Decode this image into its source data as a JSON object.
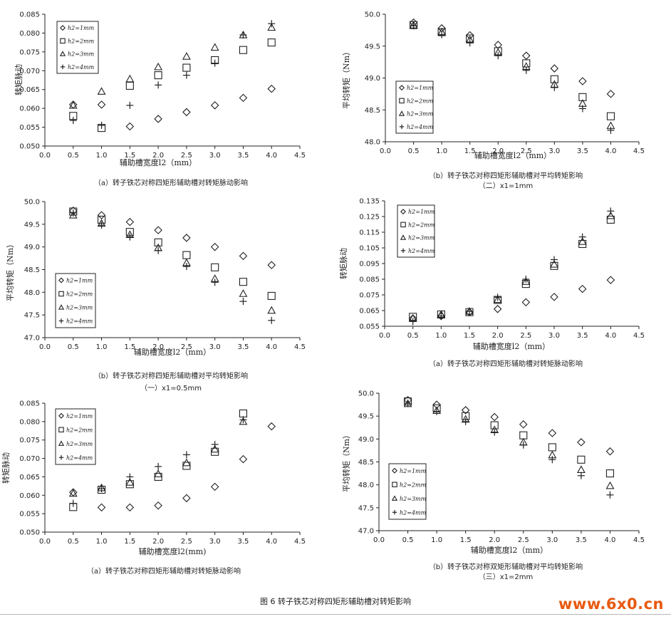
{
  "figure_caption": "图 6 转子铁芯对称四矩形辅助槽对转矩影响",
  "watermark": "www.6x0.cn",
  "captions": {
    "c1": "（a）转子铁芯对称四矩形辅助槽对转矩脉动影响",
    "c2a": "（b）转子铁芯对称四矩形辅助槽对平均转矩影响",
    "c2b": "（二）x1=1mm",
    "c3a": "（b）转子铁芯对称四矩形辅助槽对平均转矩影响",
    "c3b": "（一）x1=0.5mm",
    "c4": "（a）转子铁芯对称四矩形辅助槽对转矩脉动影响",
    "c5": "（a）转子铁芯对称四矩形辅助槽对转矩脉动影响",
    "c6a": "（b）转子铁芯对称双矩形辅助槽对平均转矩影响",
    "c6b": "（三）x1=2mm"
  },
  "chart_data": [
    {
      "type": "scatter",
      "xlabel": "辅助槽宽度l2（mm）",
      "ylabel": "转矩脉动",
      "xlim": [
        0.0,
        4.5
      ],
      "ylim": [
        0.05,
        0.085
      ],
      "xticks": [
        "0.0",
        "0.5",
        "1.0",
        "1.5",
        "2.0",
        "2.5",
        "3.0",
        "3.5",
        "4.0",
        "4.5"
      ],
      "yticks": [
        "0.050",
        "0.055",
        "0.060",
        "0.065",
        "0.070",
        "0.075",
        "0.080",
        "0.085"
      ],
      "legend_position": "top-left",
      "x": [
        0.5,
        1.0,
        1.5,
        2.0,
        2.5,
        3.0,
        3.5,
        4.0
      ],
      "series": [
        {
          "name": "h2=1mm",
          "marker": "diamond",
          "values": [
            0.061,
            0.061,
            0.0552,
            0.0572,
            0.059,
            0.0608,
            0.0628,
            0.0652
          ]
        },
        {
          "name": "h2=2mm",
          "marker": "square",
          "values": [
            0.058,
            0.0548,
            0.066,
            0.0688,
            0.0708,
            0.0728,
            0.0755,
            0.0775
          ]
        },
        {
          "name": "h2=3mm",
          "marker": "triangle",
          "values": [
            0.0608,
            0.0645,
            0.0678,
            0.071,
            0.0738,
            0.0762,
            0.0795,
            0.0815
          ]
        },
        {
          "name": "h2=4mm",
          "marker": "plus",
          "values": [
            0.0568,
            0.0555,
            0.0608,
            0.0662,
            0.0688,
            0.072,
            0.0795,
            0.0825
          ]
        }
      ]
    },
    {
      "type": "scatter",
      "xlabel": "辅助槽宽度l2（mm）",
      "ylabel": "平均转矩（Nm）",
      "xlim": [
        0.0,
        4.5
      ],
      "ylim": [
        48.0,
        50.0
      ],
      "xticks": [
        "0.0",
        "0.5",
        "1.0",
        "1.5",
        "2.0",
        "2.5",
        "3.0",
        "3.5",
        "4.0",
        "4.5"
      ],
      "yticks": [
        "48.0",
        "48.5",
        "49.0",
        "49.5",
        "50.0"
      ],
      "legend_position": "bottom-left",
      "x": [
        0.5,
        1.0,
        1.5,
        2.0,
        2.5,
        3.0,
        3.5,
        4.0
      ],
      "series": [
        {
          "name": "h2=1mm",
          "marker": "diamond",
          "values": [
            49.87,
            49.78,
            49.67,
            49.52,
            49.35,
            49.15,
            48.95,
            48.75
          ]
        },
        {
          "name": "h2=2mm",
          "marker": "square",
          "values": [
            49.83,
            49.72,
            49.62,
            49.42,
            49.23,
            48.98,
            48.7,
            48.4
          ]
        },
        {
          "name": "h2=3mm",
          "marker": "triangle",
          "values": [
            49.83,
            49.72,
            49.6,
            49.4,
            49.18,
            48.9,
            48.6,
            48.25
          ]
        },
        {
          "name": "h2=4mm",
          "marker": "plus",
          "values": [
            49.82,
            49.68,
            49.55,
            49.35,
            49.12,
            48.85,
            48.52,
            48.18
          ]
        }
      ]
    },
    {
      "type": "scatter",
      "xlabel": "辅助槽宽度l2（mm）",
      "ylabel": "平均转矩（Nm）",
      "xlim": [
        0.0,
        4.5
      ],
      "ylim": [
        47.0,
        50.0
      ],
      "xticks": [
        "0.0",
        "0.5",
        "1.0",
        "1.5",
        "2.0",
        "2.5",
        "3.0",
        "3.5",
        "4.0",
        "4.5"
      ],
      "yticks": [
        "47.0",
        "47.5",
        "48.0",
        "48.5",
        "49.0",
        "49.5",
        "50.0"
      ],
      "legend_position": "bottom-left",
      "x": [
        0.5,
        1.0,
        1.5,
        2.0,
        2.5,
        3.0,
        3.5,
        4.0
      ],
      "series": [
        {
          "name": "h2=1mm",
          "marker": "diamond",
          "values": [
            49.8,
            49.7,
            49.55,
            49.37,
            49.2,
            49.0,
            48.8,
            48.6
          ]
        },
        {
          "name": "h2=2mm",
          "marker": "square",
          "values": [
            49.78,
            49.6,
            49.33,
            49.1,
            48.82,
            48.55,
            48.23,
            47.92
          ]
        },
        {
          "name": "h2=3mm",
          "marker": "triangle",
          "values": [
            49.7,
            49.52,
            49.27,
            48.98,
            48.65,
            48.3,
            47.97,
            47.6
          ]
        },
        {
          "name": "h2=4mm",
          "marker": "plus",
          "values": [
            49.75,
            49.48,
            49.22,
            48.92,
            48.57,
            48.22,
            47.8,
            47.38
          ]
        }
      ]
    },
    {
      "type": "scatter",
      "xlabel": "辅助槽宽度l2（mm）",
      "ylabel": "转矩脉动",
      "xlim": [
        0.0,
        4.5
      ],
      "ylim": [
        0.055,
        0.135
      ],
      "xticks": [
        "0.0",
        "0.5",
        "1.0",
        "1.5",
        "2.0",
        "2.5",
        "3.0",
        "3.5",
        "4.0",
        "4.5"
      ],
      "yticks": [
        "0.055",
        "0.065",
        "0.075",
        "0.085",
        "0.095",
        "0.105",
        "0.115",
        "0.125",
        "0.135"
      ],
      "legend_position": "top-left",
      "x": [
        0.5,
        1.0,
        1.5,
        2.0,
        2.5,
        3.0,
        3.5,
        4.0
      ],
      "series": [
        {
          "name": "h2=1mm",
          "marker": "diamond",
          "values": [
            0.06,
            0.0615,
            0.064,
            0.066,
            0.0703,
            0.0737,
            0.0788,
            0.0845
          ]
        },
        {
          "name": "h2=2mm",
          "marker": "square",
          "values": [
            0.061,
            0.0625,
            0.064,
            0.0718,
            0.082,
            0.0935,
            0.1075,
            0.123
          ]
        },
        {
          "name": "h2=3mm",
          "marker": "triangle",
          "values": [
            0.06,
            0.0625,
            0.0645,
            0.072,
            0.0835,
            0.0945,
            0.109,
            0.1255
          ]
        },
        {
          "name": "h2=4mm",
          "marker": "plus",
          "values": [
            0.058,
            0.0615,
            0.0645,
            0.0735,
            0.085,
            0.0975,
            0.112,
            0.1285
          ]
        }
      ]
    },
    {
      "type": "scatter",
      "xlabel": "辅助槽宽度l2(mm)",
      "ylabel": "转矩脉动",
      "xlim": [
        0.0,
        4.5
      ],
      "ylim": [
        0.05,
        0.085
      ],
      "xticks": [
        "0.0",
        "0.5",
        "1.0",
        "1.5",
        "2.0",
        "2.5",
        "3.0",
        "3.5",
        "4.0",
        "4.5"
      ],
      "yticks": [
        "0.050",
        "0.055",
        "0.060",
        "0.065",
        "0.070",
        "0.075",
        "0.080",
        "0.085"
      ],
      "legend_position": "top-left",
      "x": [
        0.5,
        1.0,
        1.5,
        2.0,
        2.5,
        3.0,
        3.5,
        4.0
      ],
      "series": [
        {
          "name": "h2=1mm",
          "marker": "diamond",
          "values": [
            0.0608,
            0.0567,
            0.0567,
            0.0572,
            0.0592,
            0.0623,
            0.0698,
            0.0787
          ]
        },
        {
          "name": "h2=2mm",
          "marker": "square",
          "values": [
            0.0568,
            0.0615,
            0.063,
            0.065,
            0.068,
            0.0718,
            0.0822,
            null
          ]
        },
        {
          "name": "h2=3mm",
          "marker": "triangle",
          "values": [
            0.0605,
            0.062,
            0.0635,
            0.0658,
            0.0688,
            0.0725,
            0.08,
            null
          ]
        },
        {
          "name": "h2=4mm",
          "marker": "plus",
          "values": [
            0.0578,
            0.0618,
            0.065,
            0.0678,
            0.071,
            0.0738,
            0.0805,
            null
          ]
        }
      ]
    },
    {
      "type": "scatter",
      "xlabel": "辅助槽宽度l2（mm）",
      "ylabel": "平均转矩（Nm）",
      "xlim": [
        0.0,
        4.5
      ],
      "ylim": [
        47.0,
        50.0
      ],
      "xticks": [
        "0.0",
        "0.5",
        "1.0",
        "1.5",
        "2.0",
        "2.5",
        "3.0",
        "3.5",
        "4.0",
        "4.5"
      ],
      "yticks": [
        "47.0",
        "47.5",
        "48.0",
        "48.5",
        "49.0",
        "49.5",
        "50.0"
      ],
      "legend_position": "bottom-left",
      "x": [
        0.5,
        1.0,
        1.5,
        2.0,
        2.5,
        3.0,
        3.5,
        4.0
      ],
      "series": [
        {
          "name": "h2=1mm",
          "marker": "diamond",
          "values": [
            49.85,
            49.75,
            49.63,
            49.48,
            49.32,
            49.13,
            48.93,
            48.73
          ]
        },
        {
          "name": "h2=2mm",
          "marker": "square",
          "values": [
            49.82,
            49.67,
            49.5,
            49.3,
            49.08,
            48.82,
            48.55,
            48.25
          ]
        },
        {
          "name": "h2=3mm",
          "marker": "triangle",
          "values": [
            49.77,
            49.62,
            49.43,
            49.2,
            48.93,
            48.65,
            48.33,
            47.98
          ]
        },
        {
          "name": "h2=4mm",
          "marker": "plus",
          "values": [
            49.78,
            49.6,
            49.38,
            49.15,
            48.87,
            48.55,
            48.2,
            47.78
          ]
        }
      ]
    }
  ]
}
